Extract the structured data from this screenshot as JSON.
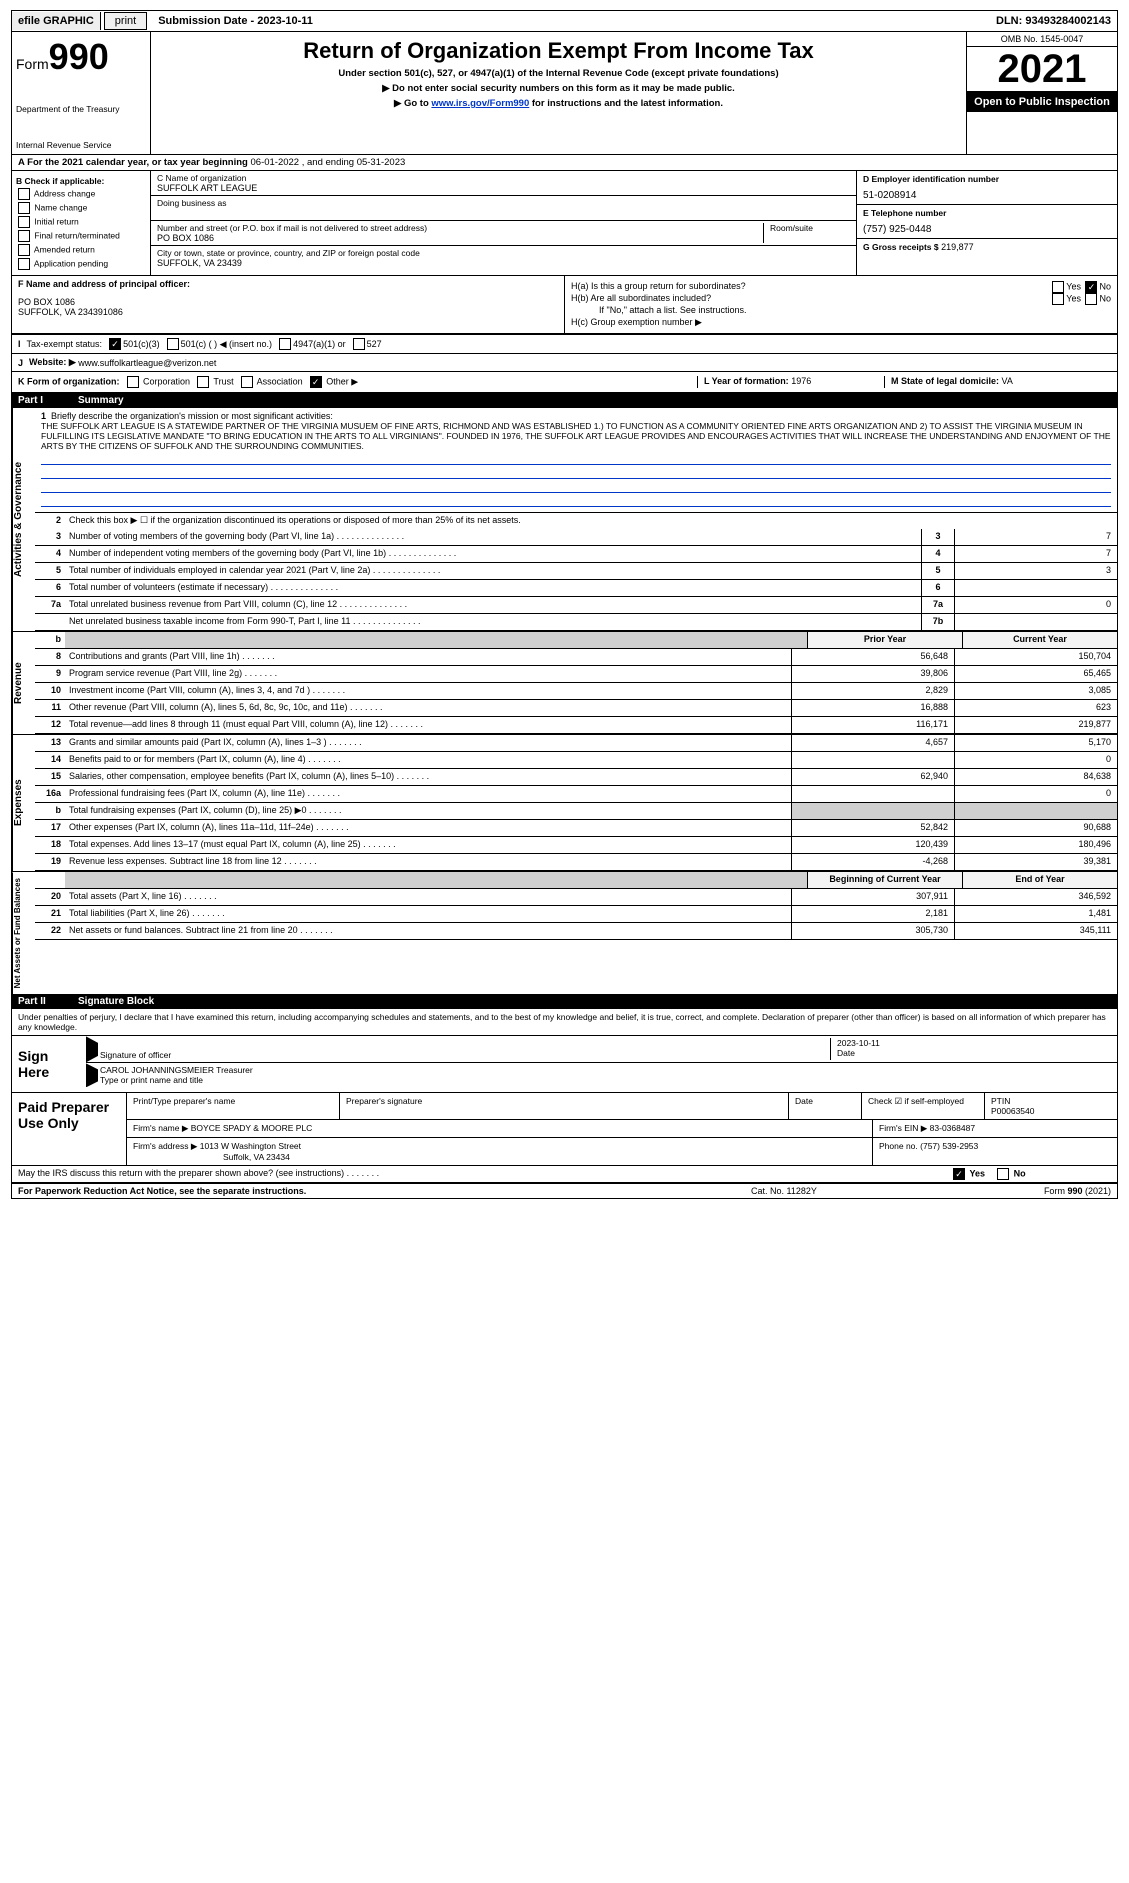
{
  "topbar": {
    "efile": "efile GRAPHIC",
    "print_btn": "print",
    "subdate_label": "Submission Date - ",
    "subdate": "2023-10-11",
    "dln": "DLN: 93493284002143"
  },
  "header": {
    "form_prefix": "Form",
    "form_number": "990",
    "dept": "Department of the Treasury",
    "irs": "Internal Revenue Service",
    "title": "Return of Organization Exempt From Income Tax",
    "subtitle": "Under section 501(c), 527, or 4947(a)(1) of the Internal Revenue Code (except private foundations)",
    "ssn_note": "▶ Do not enter social security numbers on this form as it may be made public.",
    "goto_prefix": "▶ Go to ",
    "goto_link": "www.irs.gov/Form990",
    "goto_suffix": " for instructions and the latest information.",
    "omb": "OMB No. 1545-0047",
    "year": "2021",
    "open_public": "Open to Public Inspection"
  },
  "period": {
    "label_a": "A For the 2021 calendar year, or tax year beginning ",
    "begin": "06-01-2022",
    "mid": " , and ending ",
    "end": "05-31-2023"
  },
  "section_b": {
    "lbl": "B Check if applicable:",
    "items": [
      "Address change",
      "Name change",
      "Initial return",
      "Final return/terminated",
      "Amended return",
      "Application pending"
    ]
  },
  "section_c": {
    "name_lbl": "C Name of organization",
    "name": "SUFFOLK ART LEAGUE",
    "dba_lbl": "Doing business as",
    "dba": "",
    "addr_lbl": "Number and street (or P.O. box if mail is not delivered to street address)",
    "room_lbl": "Room/suite",
    "addr": "PO BOX 1086",
    "city_lbl": "City or town, state or province, country, and ZIP or foreign postal code",
    "city": "SUFFOLK, VA  23439"
  },
  "section_d": {
    "lbl": "D Employer identification number",
    "val": "51-0208914"
  },
  "section_e": {
    "lbl": "E Telephone number",
    "val": "(757) 925-0448"
  },
  "section_g": {
    "lbl": "G Gross receipts $",
    "val": "219,877"
  },
  "section_f": {
    "lbl": "F  Name and address of principal officer:",
    "name": "",
    "addr1": "PO BOX 1086",
    "addr2": "SUFFOLK, VA  234391086"
  },
  "section_h": {
    "ha": "H(a)  Is this a group return for subordinates?",
    "hb": "H(b)  Are all subordinates included?",
    "hb_note": "If \"No,\" attach a list. See instructions.",
    "hc": "H(c)  Group exemption number ▶",
    "yes": "Yes",
    "no": "No"
  },
  "section_i": {
    "lbl": "I",
    "text": "Tax-exempt status:",
    "opts": [
      "501(c)(3)",
      "501(c) (  ) ◀ (insert no.)",
      "4947(a)(1) or",
      "527"
    ]
  },
  "section_j": {
    "lbl": "J",
    "text": "Website: ▶",
    "val": "www.suffolkartleague@verizon.net"
  },
  "section_k": {
    "lbl": "K Form of organization:",
    "opts": [
      "Corporation",
      "Trust",
      "Association",
      "Other ▶"
    ]
  },
  "section_l": {
    "lbl": "L Year of formation:",
    "val": "1976"
  },
  "section_m": {
    "lbl": "M State of legal domicile:",
    "val": "VA"
  },
  "part1": {
    "hdr_part": "Part I",
    "hdr_title": "Summary",
    "side_ag": "Activities & Governance",
    "side_rev": "Revenue",
    "side_exp": "Expenses",
    "side_net": "Net Assets or Fund Balances",
    "line1_lbl": "Briefly describe the organization's mission or most significant activities:",
    "line1_text": "THE SUFFOLK ART LEAGUE IS A STATEWIDE PARTNER OF THE VIRGINIA MUSUEM OF FINE ARTS, RICHMOND AND WAS ESTABLISHED 1.) TO FUNCTION AS A COMMUNITY ORIENTED FINE ARTS ORGANIZATION AND 2) TO ASSIST THE VIRGINIA MUSEUM IN FULFILLING ITS LEGISLATIVE MANDATE \"TO BRING EDUCATION IN THE ARTS TO ALL VIRGINIANS\". FOUNDED IN 1976, THE SUFFOLK ART LEAGUE PROVIDES AND ENCOURAGES ACTIVITIES THAT WILL INCREASE THE UNDERSTANDING AND ENJOYMENT OF THE ARTS BY THE CITIZENS OF SUFFOLK AND THE SURROUNDING COMMUNITIES.",
    "line2": "Check this box ▶ ☐ if the organization discontinued its operations or disposed of more than 25% of its net assets.",
    "rows_single": [
      {
        "n": "3",
        "d": "Number of voting members of the governing body (Part VI, line 1a)",
        "box": "3",
        "v": "7"
      },
      {
        "n": "4",
        "d": "Number of independent voting members of the governing body (Part VI, line 1b)",
        "box": "4",
        "v": "7"
      },
      {
        "n": "5",
        "d": "Total number of individuals employed in calendar year 2021 (Part V, line 2a)",
        "box": "5",
        "v": "3"
      },
      {
        "n": "6",
        "d": "Total number of volunteers (estimate if necessary)",
        "box": "6",
        "v": ""
      },
      {
        "n": "7a",
        "d": "Total unrelated business revenue from Part VIII, column (C), line 12",
        "box": "7a",
        "v": "0"
      },
      {
        "n": "",
        "d": "Net unrelated business taxable income from Form 990-T, Part I, line 11",
        "box": "7b",
        "v": ""
      }
    ],
    "hdr_prior": "Prior Year",
    "hdr_curr": "Current Year",
    "hdr_boy": "Beginning of Current Year",
    "hdr_eoy": "End of Year",
    "rows_rev": [
      {
        "n": "8",
        "d": "Contributions and grants (Part VIII, line 1h)",
        "p": "56,648",
        "c": "150,704"
      },
      {
        "n": "9",
        "d": "Program service revenue (Part VIII, line 2g)",
        "p": "39,806",
        "c": "65,465"
      },
      {
        "n": "10",
        "d": "Investment income (Part VIII, column (A), lines 3, 4, and 7d )",
        "p": "2,829",
        "c": "3,085"
      },
      {
        "n": "11",
        "d": "Other revenue (Part VIII, column (A), lines 5, 6d, 8c, 9c, 10c, and 11e)",
        "p": "16,888",
        "c": "623"
      },
      {
        "n": "12",
        "d": "Total revenue—add lines 8 through 11 (must equal Part VIII, column (A), line 12)",
        "p": "116,171",
        "c": "219,877"
      }
    ],
    "rows_exp": [
      {
        "n": "13",
        "d": "Grants and similar amounts paid (Part IX, column (A), lines 1–3 )",
        "p": "4,657",
        "c": "5,170"
      },
      {
        "n": "14",
        "d": "Benefits paid to or for members (Part IX, column (A), line 4)",
        "p": "",
        "c": "0"
      },
      {
        "n": "15",
        "d": "Salaries, other compensation, employee benefits (Part IX, column (A), lines 5–10)",
        "p": "62,940",
        "c": "84,638"
      },
      {
        "n": "16a",
        "d": "Professional fundraising fees (Part IX, column (A), line 11e)",
        "p": "",
        "c": "0"
      },
      {
        "n": "b",
        "d": "Total fundraising expenses (Part IX, column (D), line 25) ▶0",
        "p": "__shade__",
        "c": "__shade__"
      },
      {
        "n": "17",
        "d": "Other expenses (Part IX, column (A), lines 11a–11d, 11f–24e)",
        "p": "52,842",
        "c": "90,688"
      },
      {
        "n": "18",
        "d": "Total expenses. Add lines 13–17 (must equal Part IX, column (A), line 25)",
        "p": "120,439",
        "c": "180,496"
      },
      {
        "n": "19",
        "d": "Revenue less expenses. Subtract line 18 from line 12",
        "p": "-4,268",
        "c": "39,381"
      }
    ],
    "rows_net": [
      {
        "n": "20",
        "d": "Total assets (Part X, line 16)",
        "p": "307,911",
        "c": "346,592"
      },
      {
        "n": "21",
        "d": "Total liabilities (Part X, line 26)",
        "p": "2,181",
        "c": "1,481"
      },
      {
        "n": "22",
        "d": "Net assets or fund balances. Subtract line 21 from line 20",
        "p": "305,730",
        "c": "345,111"
      }
    ]
  },
  "part2": {
    "hdr_part": "Part II",
    "hdr_title": "Signature Block",
    "declare": "Under penalties of perjury, I declare that I have examined this return, including accompanying schedules and statements, and to the best of my knowledge and belief, it is true, correct, and complete. Declaration of preparer (other than officer) is based on all information of which preparer has any knowledge.",
    "sign_here": "Sign Here",
    "sig_officer_lbl": "Signature of officer",
    "sig_date_lbl": "Date",
    "sig_date": "2023-10-11",
    "officer_name": "CAROL JOHANNINGSMEIER  Treasurer",
    "type_name_lbl": "Type or print name and title",
    "paid_lbl": "Paid Preparer Use Only",
    "prep_name_lbl": "Print/Type preparer's name",
    "prep_sig_lbl": "Preparer's signature",
    "prep_date_lbl": "Date",
    "check_self_lbl": "Check ☑ if self-employed",
    "ptin_lbl": "PTIN",
    "ptin": "P00063540",
    "firm_name_lbl": "Firm's name    ▶",
    "firm_name": "BOYCE SPADY & MOORE PLC",
    "firm_ein_lbl": "Firm's EIN ▶",
    "firm_ein": "83-0368487",
    "firm_addr_lbl": "Firm's address ▶",
    "firm_addr": "1013 W Washington Street",
    "firm_city": "Suffolk, VA  23434",
    "firm_phone_lbl": "Phone no.",
    "firm_phone": "(757) 539-2953",
    "may_irs": "May the IRS discuss this return with the preparer shown above? (see instructions)",
    "yes": "Yes",
    "no": "No"
  },
  "footer": {
    "left": "For Paperwork Reduction Act Notice, see the separate instructions.",
    "mid": "Cat. No. 11282Y",
    "right": "Form 990 (2021)"
  }
}
